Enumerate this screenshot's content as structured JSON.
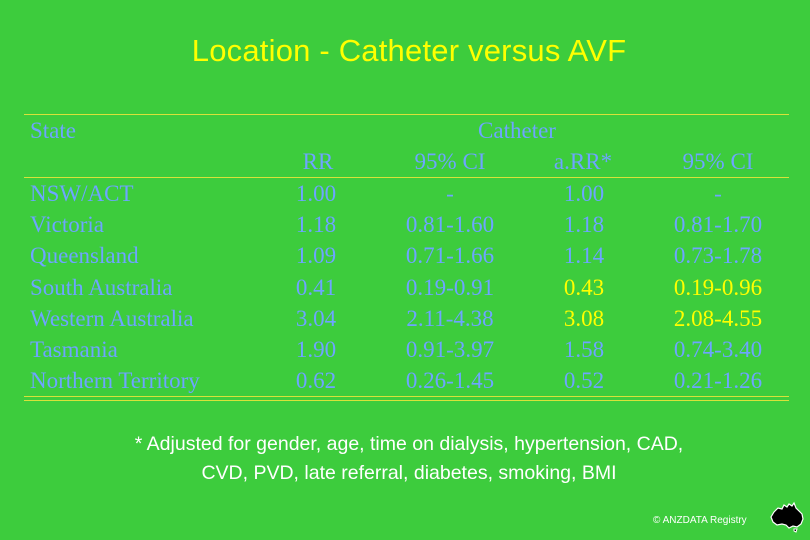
{
  "title": "Location - Catheter versus AVF",
  "table": {
    "headers": {
      "state": "State",
      "group": "Catheter",
      "rr": "RR",
      "ci1": "95% CI",
      "arr": "a.RR*",
      "ci2": "95% CI"
    },
    "rows": [
      {
        "state": "NSW/ACT",
        "rr": "1.00",
        "ci1": "-",
        "arr": "1.00",
        "ci2": "-",
        "highlight": false
      },
      {
        "state": "Victoria",
        "rr": "1.18",
        "ci1": "0.81-1.60",
        "arr": "1.18",
        "ci2": "0.81-1.70",
        "highlight": false
      },
      {
        "state": "Queensland",
        "rr": "1.09",
        "ci1": "0.71-1.66",
        "arr": "1.14",
        "ci2": "0.73-1.78",
        "highlight": false
      },
      {
        "state": "South Australia",
        "rr": "0.41",
        "ci1": "0.19-0.91",
        "arr": "0.43",
        "ci2": "0.19-0.96",
        "highlight": true
      },
      {
        "state": "Western Australia",
        "rr": "3.04",
        "ci1": "2.11-4.38",
        "arr": "3.08",
        "ci2": "2.08-4.55",
        "highlight": true
      },
      {
        "state": "Tasmania",
        "rr": "1.90",
        "ci1": "0.91-3.97",
        "arr": "1.58",
        "ci2": "0.74-3.40",
        "highlight": false
      },
      {
        "state": "Northern Territory",
        "rr": "0.62",
        "ci1": "0.26-1.45",
        "arr": "0.52",
        "ci2": "0.21-1.26",
        "highlight": false
      }
    ]
  },
  "footnote": {
    "line1": "* Adjusted for gender, age, time on dialysis, hypertension, CAD,",
    "line2": "CVD, PVD, late referral, diabetes, smoking, BMI"
  },
  "credit": "© ANZDATA Registry",
  "logo_icon": "australia-map-icon",
  "colors": {
    "background": "#3dcc3d",
    "title": "#ffff00",
    "table_text": "#6ea4ff",
    "highlight": "#ffff00",
    "rules": "#d8e23a"
  }
}
